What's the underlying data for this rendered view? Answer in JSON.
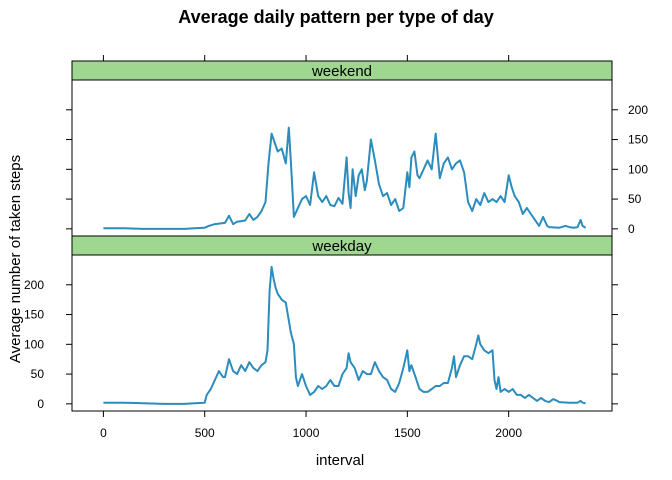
{
  "chart_data": {
    "type": "line",
    "title": "Average daily pattern per type of day",
    "xlabel": "interval",
    "ylabel": "Average number of taken steps",
    "xlim": [
      -155,
      2510
    ],
    "ylim": [
      -12,
      250
    ],
    "x_ticks": [
      0,
      500,
      1000,
      1500,
      2000
    ],
    "y_ticks": [
      0,
      50,
      100,
      150,
      200
    ],
    "line_color": "#2b8cbe",
    "strip_color": "#9fd791",
    "panels": [
      {
        "name": "weekend",
        "points": [
          [
            0,
            1
          ],
          [
            100,
            1
          ],
          [
            200,
            0
          ],
          [
            300,
            0
          ],
          [
            400,
            0
          ],
          [
            450,
            1
          ],
          [
            500,
            2
          ],
          [
            520,
            5
          ],
          [
            550,
            8
          ],
          [
            600,
            10
          ],
          [
            620,
            22
          ],
          [
            640,
            8
          ],
          [
            660,
            12
          ],
          [
            700,
            14
          ],
          [
            720,
            25
          ],
          [
            740,
            15
          ],
          [
            760,
            20
          ],
          [
            780,
            30
          ],
          [
            800,
            45
          ],
          [
            815,
            110
          ],
          [
            830,
            160
          ],
          [
            845,
            145
          ],
          [
            860,
            130
          ],
          [
            880,
            135
          ],
          [
            900,
            110
          ],
          [
            915,
            170
          ],
          [
            925,
            115
          ],
          [
            940,
            20
          ],
          [
            960,
            35
          ],
          [
            980,
            50
          ],
          [
            1000,
            55
          ],
          [
            1020,
            40
          ],
          [
            1040,
            95
          ],
          [
            1060,
            55
          ],
          [
            1080,
            45
          ],
          [
            1100,
            55
          ],
          [
            1120,
            40
          ],
          [
            1140,
            38
          ],
          [
            1160,
            52
          ],
          [
            1180,
            42
          ],
          [
            1200,
            120
          ],
          [
            1210,
            60
          ],
          [
            1220,
            35
          ],
          [
            1230,
            100
          ],
          [
            1245,
            55
          ],
          [
            1260,
            90
          ],
          [
            1275,
            100
          ],
          [
            1290,
            65
          ],
          [
            1300,
            80
          ],
          [
            1320,
            150
          ],
          [
            1340,
            115
          ],
          [
            1360,
            75
          ],
          [
            1380,
            55
          ],
          [
            1400,
            60
          ],
          [
            1420,
            40
          ],
          [
            1440,
            50
          ],
          [
            1460,
            30
          ],
          [
            1480,
            35
          ],
          [
            1500,
            95
          ],
          [
            1510,
            70
          ],
          [
            1520,
            120
          ],
          [
            1535,
            130
          ],
          [
            1550,
            90
          ],
          [
            1560,
            85
          ],
          [
            1580,
            100
          ],
          [
            1600,
            115
          ],
          [
            1620,
            100
          ],
          [
            1640,
            160
          ],
          [
            1660,
            85
          ],
          [
            1680,
            110
          ],
          [
            1700,
            120
          ],
          [
            1720,
            100
          ],
          [
            1740,
            110
          ],
          [
            1760,
            115
          ],
          [
            1780,
            95
          ],
          [
            1800,
            45
          ],
          [
            1820,
            30
          ],
          [
            1840,
            50
          ],
          [
            1860,
            40
          ],
          [
            1880,
            60
          ],
          [
            1900,
            45
          ],
          [
            1920,
            50
          ],
          [
            1940,
            45
          ],
          [
            1960,
            55
          ],
          [
            1980,
            45
          ],
          [
            2000,
            90
          ],
          [
            2015,
            70
          ],
          [
            2030,
            55
          ],
          [
            2050,
            45
          ],
          [
            2070,
            25
          ],
          [
            2090,
            35
          ],
          [
            2110,
            25
          ],
          [
            2130,
            15
          ],
          [
            2150,
            5
          ],
          [
            2170,
            20
          ],
          [
            2190,
            5
          ],
          [
            2200,
            3
          ],
          [
            2250,
            2
          ],
          [
            2280,
            5
          ],
          [
            2300,
            3
          ],
          [
            2320,
            2
          ],
          [
            2340,
            3
          ],
          [
            2355,
            15
          ],
          [
            2365,
            5
          ],
          [
            2375,
            3
          ],
          [
            2380,
            2
          ]
        ]
      },
      {
        "name": "weekday",
        "points": [
          [
            0,
            2
          ],
          [
            100,
            2
          ],
          [
            200,
            1
          ],
          [
            300,
            0
          ],
          [
            400,
            0
          ],
          [
            450,
            1
          ],
          [
            500,
            2
          ],
          [
            510,
            15
          ],
          [
            530,
            25
          ],
          [
            550,
            40
          ],
          [
            570,
            55
          ],
          [
            590,
            45
          ],
          [
            600,
            45
          ],
          [
            610,
            60
          ],
          [
            620,
            75
          ],
          [
            640,
            55
          ],
          [
            660,
            50
          ],
          [
            680,
            65
          ],
          [
            700,
            55
          ],
          [
            720,
            70
          ],
          [
            740,
            60
          ],
          [
            760,
            55
          ],
          [
            780,
            65
          ],
          [
            800,
            70
          ],
          [
            810,
            90
          ],
          [
            820,
            190
          ],
          [
            830,
            230
          ],
          [
            840,
            210
          ],
          [
            850,
            195
          ],
          [
            860,
            185
          ],
          [
            880,
            175
          ],
          [
            900,
            170
          ],
          [
            915,
            140
          ],
          [
            925,
            120
          ],
          [
            940,
            100
          ],
          [
            950,
            45
          ],
          [
            960,
            30
          ],
          [
            980,
            50
          ],
          [
            1000,
            30
          ],
          [
            1020,
            15
          ],
          [
            1040,
            20
          ],
          [
            1060,
            30
          ],
          [
            1080,
            25
          ],
          [
            1100,
            30
          ],
          [
            1120,
            40
          ],
          [
            1140,
            30
          ],
          [
            1160,
            30
          ],
          [
            1180,
            50
          ],
          [
            1200,
            60
          ],
          [
            1210,
            85
          ],
          [
            1220,
            70
          ],
          [
            1240,
            60
          ],
          [
            1260,
            40
          ],
          [
            1280,
            55
          ],
          [
            1300,
            50
          ],
          [
            1320,
            50
          ],
          [
            1340,
            70
          ],
          [
            1360,
            55
          ],
          [
            1380,
            45
          ],
          [
            1400,
            40
          ],
          [
            1420,
            25
          ],
          [
            1440,
            20
          ],
          [
            1460,
            35
          ],
          [
            1480,
            60
          ],
          [
            1500,
            90
          ],
          [
            1510,
            55
          ],
          [
            1520,
            65
          ],
          [
            1540,
            45
          ],
          [
            1560,
            25
          ],
          [
            1580,
            20
          ],
          [
            1600,
            20
          ],
          [
            1620,
            25
          ],
          [
            1640,
            30
          ],
          [
            1660,
            30
          ],
          [
            1680,
            35
          ],
          [
            1700,
            35
          ],
          [
            1720,
            60
          ],
          [
            1730,
            80
          ],
          [
            1740,
            45
          ],
          [
            1760,
            65
          ],
          [
            1780,
            80
          ],
          [
            1800,
            80
          ],
          [
            1820,
            75
          ],
          [
            1840,
            100
          ],
          [
            1850,
            115
          ],
          [
            1860,
            100
          ],
          [
            1880,
            90
          ],
          [
            1900,
            85
          ],
          [
            1920,
            90
          ],
          [
            1930,
            40
          ],
          [
            1940,
            25
          ],
          [
            1950,
            45
          ],
          [
            1960,
            20
          ],
          [
            1980,
            25
          ],
          [
            2000,
            20
          ],
          [
            2020,
            25
          ],
          [
            2040,
            15
          ],
          [
            2060,
            15
          ],
          [
            2080,
            10
          ],
          [
            2100,
            15
          ],
          [
            2120,
            10
          ],
          [
            2140,
            5
          ],
          [
            2160,
            10
          ],
          [
            2180,
            5
          ],
          [
            2200,
            3
          ],
          [
            2220,
            8
          ],
          [
            2240,
            5
          ],
          [
            2250,
            3
          ],
          [
            2300,
            2
          ],
          [
            2340,
            2
          ],
          [
            2355,
            5
          ],
          [
            2365,
            2
          ],
          [
            2380,
            1
          ]
        ]
      }
    ]
  }
}
